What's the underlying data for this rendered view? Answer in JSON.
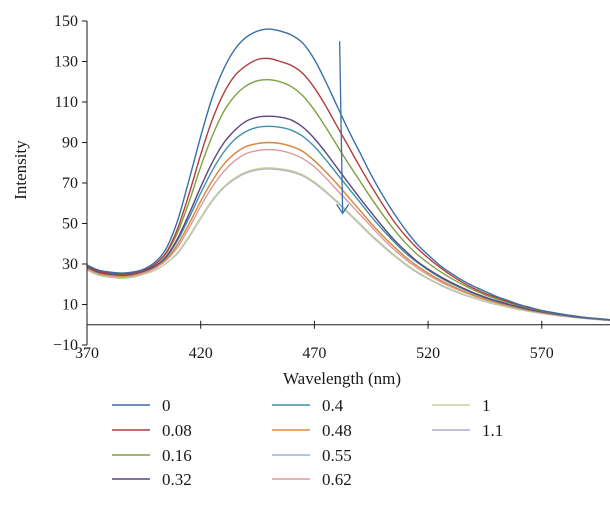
{
  "chart_data": {
    "type": "line",
    "title": "",
    "xlabel": "Wavelength (nm)",
    "ylabel": "Intensity",
    "xlim": [
      370,
      600
    ],
    "ylim": [
      -10,
      150
    ],
    "xticks": [
      370,
      420,
      470,
      520,
      570
    ],
    "yticks": [
      -10,
      10,
      30,
      50,
      70,
      90,
      110,
      130,
      150
    ],
    "grid": false,
    "legend_position": "bottom",
    "x": [
      370,
      375,
      380,
      385,
      390,
      395,
      400,
      405,
      410,
      415,
      420,
      425,
      430,
      435,
      440,
      445,
      450,
      455,
      460,
      465,
      470,
      475,
      480,
      485,
      490,
      495,
      500,
      505,
      510,
      515,
      520,
      525,
      530,
      535,
      540,
      545,
      550,
      555,
      560,
      565,
      570,
      575,
      580,
      585,
      590,
      595,
      600
    ],
    "series": [
      {
        "name": "0",
        "color": "#3a6ea8",
        "values": [
          29.5,
          27,
          26,
          25.5,
          26,
          27.5,
          31,
          38,
          52,
          72,
          93,
          112,
          126,
          136,
          142,
          145,
          146,
          145,
          143,
          139,
          131,
          120,
          108,
          96,
          85,
          74,
          64,
          55,
          47,
          40,
          34.5,
          29.5,
          25.5,
          22,
          19,
          16.5,
          14,
          12,
          10,
          8.5,
          7,
          6,
          5,
          4.2,
          3.5,
          3,
          2.5
        ]
      },
      {
        "name": "0.08",
        "color": "#b23c3c",
        "values": [
          29,
          26.5,
          25.5,
          25,
          25.5,
          27,
          30,
          36,
          48,
          65,
          84,
          101,
          114,
          123,
          128,
          131,
          131.5,
          130,
          128,
          124,
          117,
          108,
          98,
          88,
          78,
          68.5,
          59.5,
          51,
          44,
          38,
          33,
          28.5,
          24.5,
          21,
          18,
          15.5,
          13.5,
          11.5,
          9.8,
          8.3,
          7,
          5.9,
          5,
          4.2,
          3.5,
          3,
          2.5
        ]
      },
      {
        "name": "0.16",
        "color": "#7fa040",
        "values": [
          29,
          26.5,
          25.5,
          25,
          25.5,
          27,
          30,
          35.5,
          46,
          61,
          78,
          93,
          105,
          113,
          118,
          120.5,
          121,
          120,
          117.5,
          113,
          106,
          97.5,
          88.5,
          79.5,
          71,
          62.5,
          54.5,
          47,
          40.5,
          35,
          30.5,
          26.5,
          23,
          20,
          17.2,
          14.8,
          12.8,
          11,
          9.4,
          8,
          6.8,
          5.8,
          4.9,
          4.1,
          3.4,
          2.9,
          2.4
        ]
      },
      {
        "name": "0.32",
        "color": "#5c4680",
        "values": [
          28.5,
          26,
          25,
          24.5,
          25,
          26.5,
          29,
          34,
          43,
          55,
          68,
          80,
          89.5,
          96,
          100.5,
          102.5,
          103,
          102.5,
          101,
          97.5,
          92,
          85,
          77.5,
          70,
          62.5,
          55.5,
          48.5,
          42,
          36.5,
          31.5,
          27.5,
          24,
          21,
          18.3,
          15.8,
          13.7,
          11.9,
          10.2,
          8.8,
          7.5,
          6.4,
          5.5,
          4.7,
          3.9,
          3.3,
          2.8,
          2.3
        ]
      },
      {
        "name": "0.4",
        "color": "#3a94a8",
        "values": [
          28.5,
          26,
          25,
          24.5,
          25,
          26.5,
          29,
          33.5,
          42,
          53,
          65,
          76,
          85,
          91.5,
          95.5,
          97.5,
          98,
          97.5,
          96,
          93,
          88,
          81.5,
          74.5,
          67.5,
          60.5,
          53.5,
          47,
          41,
          35.5,
          31,
          27,
          23.5,
          20.5,
          17.9,
          15.5,
          13.4,
          11.6,
          10,
          8.6,
          7.4,
          6.3,
          5.4,
          4.6,
          3.9,
          3.3,
          2.8,
          2.3
        ]
      },
      {
        "name": "0.48",
        "color": "#e08a3c",
        "values": [
          28,
          25.5,
          24.5,
          24,
          24.5,
          26,
          28.5,
          32.5,
          40,
          50,
          61,
          71,
          79,
          84.5,
          88,
          89.5,
          90,
          89.5,
          88,
          85.5,
          81,
          75.5,
          69.5,
          63,
          56.5,
          50,
          44,
          38.5,
          33.5,
          29.2,
          25.5,
          22.2,
          19.4,
          16.9,
          14.7,
          12.8,
          11.1,
          9.6,
          8.3,
          7.1,
          6.1,
          5.2,
          4.5,
          3.8,
          3.2,
          2.7,
          2.3
        ]
      },
      {
        "name": "0.55",
        "color": "#98b4d8",
        "values": [
          28,
          25.5,
          24.5,
          24,
          24.5,
          26,
          28.5,
          32.5,
          40,
          50,
          61,
          71,
          79,
          84.5,
          88,
          89.5,
          90,
          89.5,
          88,
          85.5,
          81,
          75.5,
          69.5,
          63,
          56.5,
          50,
          44,
          38.5,
          33.5,
          29.2,
          25.5,
          22.2,
          19.4,
          16.9,
          14.7,
          12.8,
          11.1,
          9.6,
          8.3,
          7.1,
          6.1,
          5.2,
          4.5,
          3.8,
          3.2,
          2.7,
          2.3
        ]
      },
      {
        "name": "0.62",
        "color": "#d89aa0",
        "values": [
          27.5,
          25,
          24,
          23.5,
          24,
          25.5,
          28,
          32,
          38.5,
          48,
          58.5,
          68,
          75.5,
          81,
          84.5,
          86,
          86.5,
          86,
          84.5,
          82,
          78,
          72.5,
          66.5,
          60.5,
          54.5,
          48.5,
          42.5,
          37.2,
          32.4,
          28.2,
          24.6,
          21.5,
          18.8,
          16.4,
          14.3,
          12.4,
          10.8,
          9.3,
          8,
          6.9,
          5.9,
          5.1,
          4.4,
          3.7,
          3.1,
          2.7,
          2.2
        ]
      },
      {
        "name": "1",
        "color": "#c4d49a",
        "values": [
          27,
          24.5,
          23.5,
          23,
          23.5,
          25,
          27,
          30.5,
          36,
          44,
          53,
          61.5,
          68,
          72.5,
          75.5,
          77,
          77.5,
          77,
          76,
          74,
          70.5,
          66,
          61,
          55.5,
          50,
          44.5,
          39.5,
          34.6,
          30.2,
          26.4,
          23,
          20.1,
          17.6,
          15.4,
          13.4,
          11.7,
          10.1,
          8.8,
          7.6,
          6.6,
          5.7,
          4.9,
          4.2,
          3.6,
          3,
          2.6,
          2.2
        ]
      },
      {
        "name": "1.1",
        "color": "#b0a8cc",
        "values": [
          27,
          24.5,
          23.5,
          23,
          23.5,
          25,
          27,
          30.5,
          35.5,
          43.5,
          52.5,
          61,
          67.5,
          72,
          75,
          76.5,
          77,
          76.5,
          75.5,
          73.5,
          70,
          65.5,
          60.5,
          55,
          49.5,
          44,
          39,
          34.2,
          29.8,
          26,
          22.7,
          19.8,
          17.3,
          15.1,
          13.2,
          11.5,
          10,
          8.7,
          7.5,
          6.5,
          5.6,
          4.8,
          4.1,
          3.5,
          3,
          2.5,
          2.1
        ]
      }
    ],
    "annotation": {
      "type": "arrow",
      "direction": "down",
      "x_start": 522,
      "y_start": 140,
      "x_end": 522,
      "y_end": 55,
      "color": "#3a6ea8"
    }
  }
}
